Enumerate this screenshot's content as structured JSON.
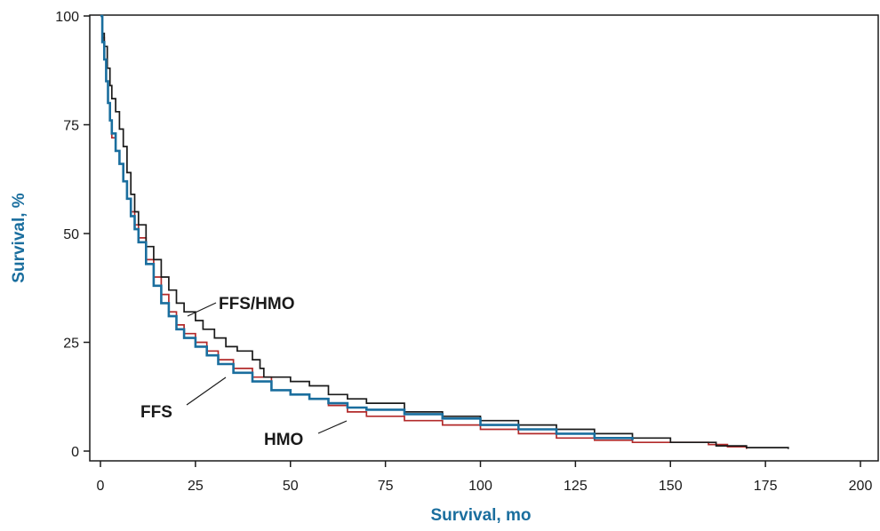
{
  "chart_data": {
    "type": "line",
    "step": true,
    "xlabel": "Survival, mo",
    "ylabel": "Survival, %",
    "xlim": [
      0,
      200
    ],
    "ylim": [
      0,
      100
    ],
    "x_ticks": [
      0,
      25,
      50,
      75,
      100,
      125,
      150,
      175,
      200
    ],
    "y_ticks": [
      0,
      25,
      50,
      75,
      100
    ],
    "grid": false,
    "axis_title_color": "#1a6e9e",
    "series": [
      {
        "name": "FFS/HMO",
        "color": "#1a1a1a",
        "points": [
          [
            0,
            100
          ],
          [
            0.5,
            96
          ],
          [
            1,
            93
          ],
          [
            1.8,
            88
          ],
          [
            2.5,
            84
          ],
          [
            3,
            81
          ],
          [
            4,
            78
          ],
          [
            5,
            74
          ],
          [
            6,
            70
          ],
          [
            7,
            64
          ],
          [
            8,
            59
          ],
          [
            9,
            55
          ],
          [
            10,
            52
          ],
          [
            12,
            47
          ],
          [
            14,
            44
          ],
          [
            16,
            40
          ],
          [
            18,
            37
          ],
          [
            20,
            34
          ],
          [
            22,
            32
          ],
          [
            25,
            30
          ],
          [
            27,
            28
          ],
          [
            30,
            26
          ],
          [
            33,
            24
          ],
          [
            36,
            23
          ],
          [
            40,
            21
          ],
          [
            42,
            19
          ],
          [
            43,
            17
          ],
          [
            50,
            16
          ],
          [
            55,
            15
          ],
          [
            60,
            13
          ],
          [
            65,
            12
          ],
          [
            70,
            11
          ],
          [
            80,
            9
          ],
          [
            90,
            8
          ],
          [
            100,
            7
          ],
          [
            110,
            6
          ],
          [
            120,
            5
          ],
          [
            130,
            4
          ],
          [
            140,
            3
          ],
          [
            150,
            2
          ],
          [
            162,
            1.2
          ],
          [
            170,
            0.8
          ],
          [
            181,
            0.5
          ]
        ]
      },
      {
        "name": "FFS",
        "color": "#1a6e9e",
        "points": [
          [
            0,
            100
          ],
          [
            0.5,
            94
          ],
          [
            1,
            90
          ],
          [
            1.5,
            85
          ],
          [
            2,
            80
          ],
          [
            2.5,
            76
          ],
          [
            3,
            73
          ],
          [
            4,
            69
          ],
          [
            5,
            66
          ],
          [
            6,
            62
          ],
          [
            7,
            58
          ],
          [
            8,
            54
          ],
          [
            9,
            51
          ],
          [
            10,
            48
          ],
          [
            12,
            43
          ],
          [
            14,
            38
          ],
          [
            16,
            34
          ],
          [
            18,
            31
          ],
          [
            20,
            28
          ],
          [
            22,
            26
          ],
          [
            25,
            24
          ],
          [
            28,
            22
          ],
          [
            31,
            20
          ],
          [
            35,
            18
          ],
          [
            40,
            16
          ],
          [
            45,
            14
          ],
          [
            50,
            13
          ],
          [
            55,
            12
          ],
          [
            60,
            11
          ],
          [
            65,
            10
          ],
          [
            70,
            9.5
          ],
          [
            80,
            8.5
          ],
          [
            90,
            7.5
          ],
          [
            100,
            6
          ],
          [
            110,
            5
          ],
          [
            120,
            4
          ],
          [
            130,
            3
          ],
          [
            140,
            2.5
          ]
        ]
      },
      {
        "name": "HMO",
        "color": "#b22a2a",
        "points": [
          [
            0,
            100
          ],
          [
            0.5,
            95
          ],
          [
            1,
            90
          ],
          [
            1.5,
            85
          ],
          [
            2,
            80
          ],
          [
            2.5,
            76
          ],
          [
            3,
            72
          ],
          [
            4,
            69
          ],
          [
            5,
            66
          ],
          [
            6,
            62
          ],
          [
            7,
            58
          ],
          [
            8,
            55
          ],
          [
            9,
            52
          ],
          [
            10,
            49
          ],
          [
            12,
            44
          ],
          [
            14,
            40
          ],
          [
            16,
            36
          ],
          [
            18,
            32
          ],
          [
            20,
            29
          ],
          [
            22,
            27
          ],
          [
            25,
            25
          ],
          [
            28,
            23
          ],
          [
            31,
            21
          ],
          [
            35,
            19
          ],
          [
            40,
            17
          ],
          [
            45,
            14
          ],
          [
            50,
            13
          ],
          [
            55,
            12
          ],
          [
            60,
            10.5
          ],
          [
            65,
            9
          ],
          [
            70,
            8
          ],
          [
            80,
            7
          ],
          [
            90,
            6
          ],
          [
            100,
            5
          ],
          [
            110,
            4
          ],
          [
            120,
            3
          ],
          [
            130,
            2.5
          ],
          [
            140,
            2
          ],
          [
            150,
            2
          ],
          [
            160,
            1.5
          ],
          [
            165,
            1
          ],
          [
            170,
            0.5
          ]
        ]
      }
    ],
    "annotations": [
      {
        "text": "FFS/HMO",
        "series": "FFS/HMO"
      },
      {
        "text": "FFS",
        "series": "FFS"
      },
      {
        "text": "HMO",
        "series": "HMO"
      }
    ]
  }
}
